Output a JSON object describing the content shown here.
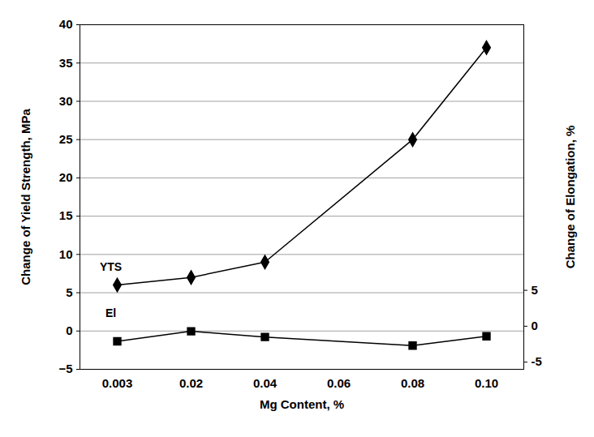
{
  "chart_data": {
    "type": "line",
    "categories": [
      "0.003",
      "0.02",
      "0.04",
      "0.06",
      "0.08",
      "0.10"
    ],
    "x_label": "Mg Content, %",
    "y_label": "Change of Yield Strength, MPa",
    "y2_label": "Change of Elongation, %",
    "ylim": [
      -5,
      40
    ],
    "yticks": [
      -5,
      0,
      5,
      10,
      15,
      20,
      25,
      30,
      35,
      40
    ],
    "y2lim": [
      -6,
      42
    ],
    "y2ticks": [
      -5,
      0,
      5
    ],
    "grid": true,
    "series": [
      {
        "name": "YTS",
        "color": "#000000",
        "marker": "diamond",
        "line_style": "solid",
        "values": [
          6,
          7,
          9,
          null,
          25,
          37
        ]
      },
      {
        "name": "El",
        "color": "#000000",
        "marker": "square",
        "line_style": "solid",
        "axis": "y2",
        "values": [
          -2.1,
          -0.7,
          -1.5,
          null,
          -2.7,
          -1.4
        ]
      }
    ]
  }
}
